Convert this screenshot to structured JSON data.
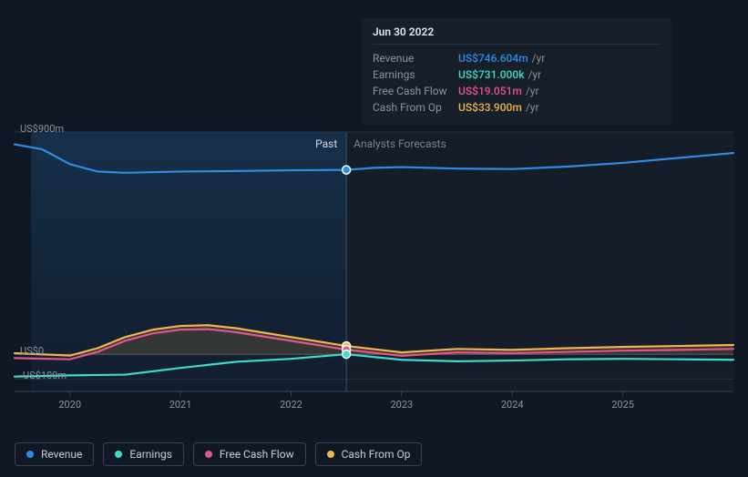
{
  "background_color": "#0f1824",
  "tooltip": {
    "title": "Jun 30 2022",
    "rows": [
      {
        "label": "Revenue",
        "value": "US$746.604m",
        "suffix": "/yr",
        "key": "revenue"
      },
      {
        "label": "Earnings",
        "value": "US$731.000k",
        "suffix": "/yr",
        "key": "earnings"
      },
      {
        "label": "Free Cash Flow",
        "value": "US$19.051m",
        "suffix": "/yr",
        "key": "fcf"
      },
      {
        "label": "Cash From Op",
        "value": "US$33.900m",
        "suffix": "/yr",
        "key": "cfo"
      }
    ]
  },
  "chart": {
    "type": "line_area",
    "x_domain": [
      2019.5,
      2026.0
    ],
    "y_domain": [
      -150,
      900
    ],
    "y_ticks": [
      {
        "v": 900,
        "label": "US$900m"
      },
      {
        "v": 0,
        "label": "US$0"
      },
      {
        "v": -100,
        "label": "-US$100m"
      }
    ],
    "x_ticks": [
      {
        "v": 2020,
        "label": "2020"
      },
      {
        "v": 2021,
        "label": "2021"
      },
      {
        "v": 2022,
        "label": "2022"
      },
      {
        "v": 2023,
        "label": "2023"
      },
      {
        "v": 2024,
        "label": "2024"
      },
      {
        "v": 2025,
        "label": "2025"
      }
    ],
    "divider_x": 2022.5,
    "past_label": "Past",
    "forecast_label": "Analysts Forecasts",
    "fontsize_axis": 11,
    "fontsize_label": 12,
    "background_past_color": "#132336",
    "background_past_gradient_top": "#16304a",
    "grid_color": "#2a3240",
    "axis_color": "#3a4250",
    "line_width": 2.2,
    "marker_radius": 4.5,
    "marker_stroke": "#ffffff",
    "series": {
      "revenue": {
        "label": "Revenue",
        "color": "#2e8ce6",
        "fill_opacity": 0.0,
        "points": [
          {
            "x": 2019.5,
            "y": 850
          },
          {
            "x": 2019.75,
            "y": 830
          },
          {
            "x": 2020.0,
            "y": 770
          },
          {
            "x": 2020.25,
            "y": 740
          },
          {
            "x": 2020.5,
            "y": 735
          },
          {
            "x": 2021.0,
            "y": 740
          },
          {
            "x": 2021.5,
            "y": 742
          },
          {
            "x": 2022.0,
            "y": 745
          },
          {
            "x": 2022.5,
            "y": 746.6
          },
          {
            "x": 2022.75,
            "y": 755
          },
          {
            "x": 2023.0,
            "y": 758
          },
          {
            "x": 2023.5,
            "y": 752
          },
          {
            "x": 2024.0,
            "y": 750
          },
          {
            "x": 2024.5,
            "y": 760
          },
          {
            "x": 2025.0,
            "y": 775
          },
          {
            "x": 2025.5,
            "y": 795
          },
          {
            "x": 2026.0,
            "y": 815
          }
        ]
      },
      "earnings": {
        "label": "Earnings",
        "color": "#3ddec8",
        "fill_opacity": 0.0,
        "points": [
          {
            "x": 2019.5,
            "y": -90
          },
          {
            "x": 2020.0,
            "y": -85
          },
          {
            "x": 2020.5,
            "y": -82
          },
          {
            "x": 2021.0,
            "y": -55
          },
          {
            "x": 2021.5,
            "y": -30
          },
          {
            "x": 2022.0,
            "y": -18
          },
          {
            "x": 2022.5,
            "y": 0.731
          },
          {
            "x": 2023.0,
            "y": -22
          },
          {
            "x": 2023.5,
            "y": -28
          },
          {
            "x": 2024.0,
            "y": -25
          },
          {
            "x": 2024.5,
            "y": -20
          },
          {
            "x": 2025.0,
            "y": -18
          },
          {
            "x": 2025.5,
            "y": -20
          },
          {
            "x": 2026.0,
            "y": -22
          }
        ]
      },
      "fcf": {
        "label": "Free Cash Flow",
        "color": "#e4558f",
        "fill_opacity": 0.0,
        "points": [
          {
            "x": 2019.5,
            "y": -15
          },
          {
            "x": 2020.0,
            "y": -20
          },
          {
            "x": 2020.25,
            "y": 10
          },
          {
            "x": 2020.5,
            "y": 55
          },
          {
            "x": 2020.75,
            "y": 85
          },
          {
            "x": 2021.0,
            "y": 100
          },
          {
            "x": 2021.25,
            "y": 102
          },
          {
            "x": 2021.5,
            "y": 90
          },
          {
            "x": 2022.0,
            "y": 55
          },
          {
            "x": 2022.5,
            "y": 19
          },
          {
            "x": 2023.0,
            "y": -6
          },
          {
            "x": 2023.5,
            "y": 8
          },
          {
            "x": 2024.0,
            "y": 5
          },
          {
            "x": 2024.5,
            "y": 10
          },
          {
            "x": 2025.0,
            "y": 15
          },
          {
            "x": 2025.5,
            "y": 18
          },
          {
            "x": 2026.0,
            "y": 22
          }
        ]
      },
      "cfo": {
        "label": "Cash From Op",
        "color": "#f1b54b",
        "fill_opacity": 0.15,
        "points": [
          {
            "x": 2019.5,
            "y": 5
          },
          {
            "x": 2020.0,
            "y": -5
          },
          {
            "x": 2020.25,
            "y": 25
          },
          {
            "x": 2020.5,
            "y": 70
          },
          {
            "x": 2020.75,
            "y": 100
          },
          {
            "x": 2021.0,
            "y": 115
          },
          {
            "x": 2021.25,
            "y": 118
          },
          {
            "x": 2021.5,
            "y": 106
          },
          {
            "x": 2022.0,
            "y": 70
          },
          {
            "x": 2022.5,
            "y": 33.9
          },
          {
            "x": 2023.0,
            "y": 8
          },
          {
            "x": 2023.5,
            "y": 22
          },
          {
            "x": 2024.0,
            "y": 18
          },
          {
            "x": 2024.5,
            "y": 25
          },
          {
            "x": 2025.0,
            "y": 30
          },
          {
            "x": 2025.5,
            "y": 34
          },
          {
            "x": 2026.0,
            "y": 38
          }
        ]
      }
    },
    "legend_order": [
      "revenue",
      "earnings",
      "fcf",
      "cfo"
    ]
  }
}
